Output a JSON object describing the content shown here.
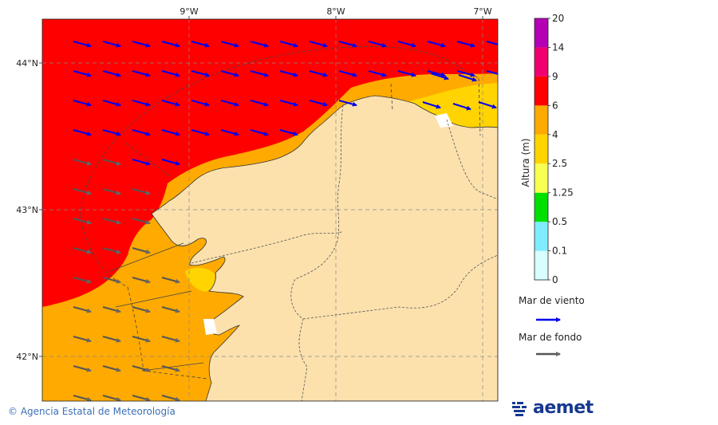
{
  "map": {
    "lon_ticks": [
      "9°W",
      "8°W",
      "7°W"
    ],
    "lat_ticks": [
      "44°N",
      "43°N",
      "42°N"
    ]
  },
  "colorbar": {
    "label": "Altura (m)",
    "levels": [
      "0",
      "0.1",
      "0.5",
      "1.25",
      "2.5",
      "4",
      "6",
      "9",
      "14",
      "20"
    ],
    "colors": [
      "#d7ffff",
      "#7fecff",
      "#00e000",
      "#f8ff50",
      "#ffd400",
      "#ffaa00",
      "#ff0000",
      "#f0006e",
      "#b400b4"
    ]
  },
  "legend": {
    "wind_sea": "Mar de viento",
    "swell": "Mar de fondo",
    "wind_sea_color": "#0000ee",
    "swell_color": "#555555"
  },
  "footer": {
    "copyright": "Agencia Estatal de Meteorología",
    "logo_text": "aemet"
  }
}
